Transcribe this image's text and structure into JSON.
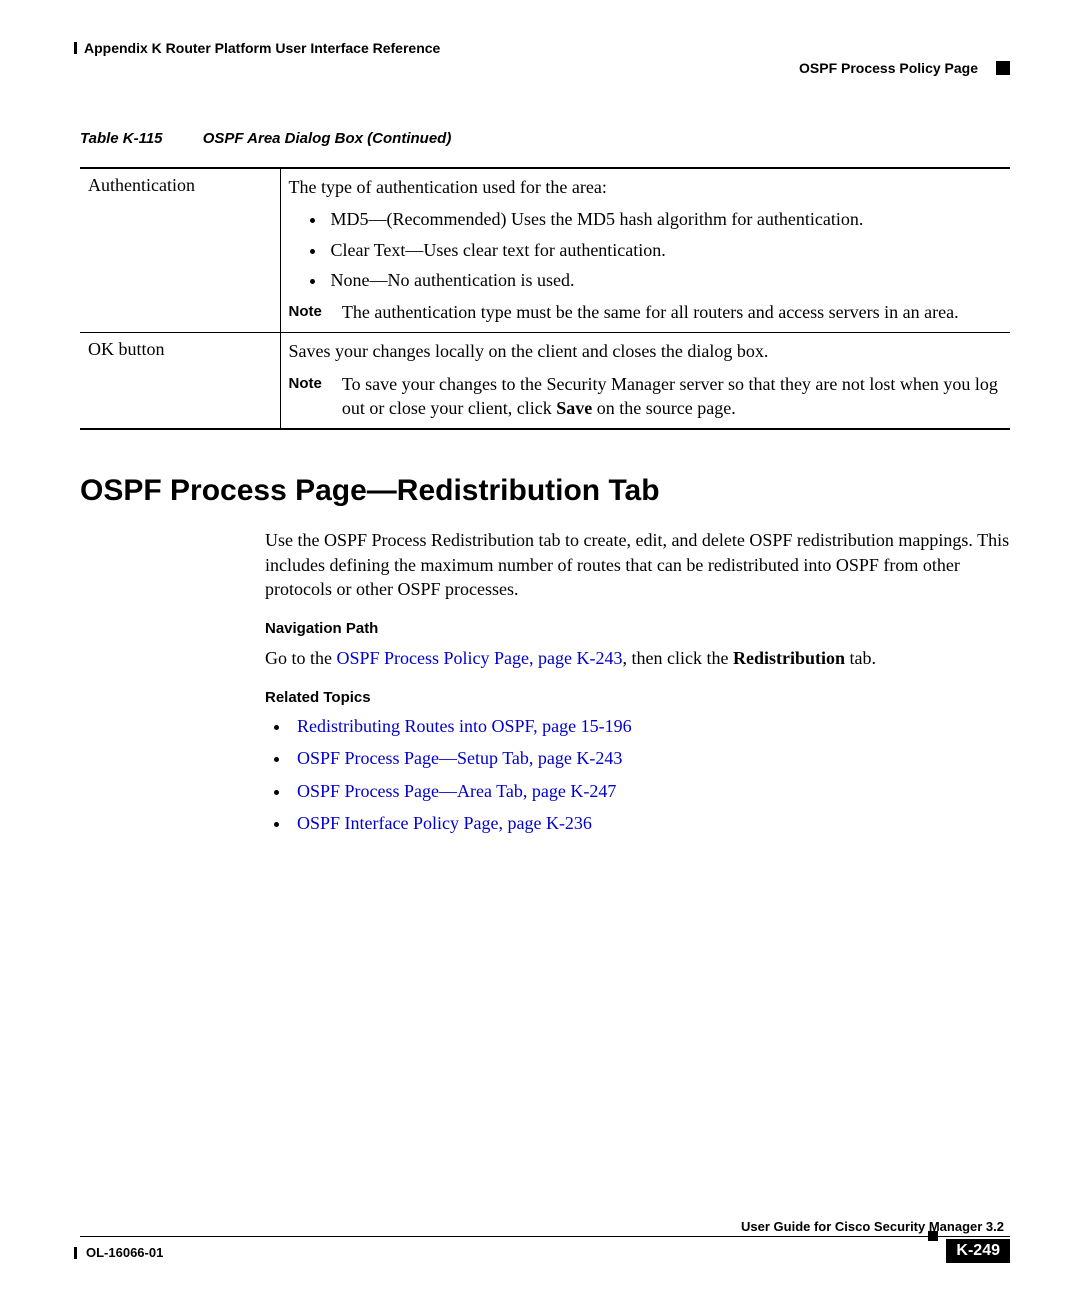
{
  "header": {
    "left": "Appendix K      Router Platform User Interface Reference",
    "right": "OSPF Process Policy Page"
  },
  "table_caption": {
    "num": "Table K-115",
    "title": "OSPF Area Dialog Box (Continued)"
  },
  "rows": {
    "r1": {
      "label": "Authentication",
      "intro": "The type of authentication used for the area:",
      "b1": "MD5—(Recommended) Uses the MD5 hash algorithm for authentication.",
      "b2": "Clear Text—Uses clear text for authentication.",
      "b3": "None—No authentication is used.",
      "note_label": "Note",
      "note_text": "The authentication type must be the same for all routers and access servers in an area."
    },
    "r2": {
      "label": "OK button",
      "intro": "Saves your changes locally on the client and closes the dialog box.",
      "note_label": "Note",
      "note_pre": "To save your changes to the Security Manager server so that they are not lost when you log out or close your client, click ",
      "note_bold": "Save",
      "note_post": " on the source page."
    }
  },
  "section_h": "OSPF Process Page—Redistribution Tab",
  "body": {
    "p1": "Use the OSPF Process Redistribution tab to create, edit, and delete OSPF redistribution mappings. This includes defining the maximum number of routes that can be redistributed into OSPF from other protocols or other OSPF processes.",
    "nav_h": "Navigation Path",
    "nav_pre": "Go to the ",
    "nav_link": "OSPF Process Policy Page, page K-243",
    "nav_mid": ", then click the ",
    "nav_bold": "Redistribution",
    "nav_post": " tab.",
    "rel_h": "Related Topics",
    "l1": "Redistributing Routes into OSPF, page 15-196",
    "l2": "OSPF Process Page—Setup Tab, page K-243",
    "l3": "OSPF Process Page—Area Tab, page K-247",
    "l4": "OSPF Interface Policy Page, page K-236"
  },
  "footer": {
    "guide": "User Guide for Cisco Security Manager 3.2",
    "ol": "OL-16066-01",
    "page": "K-249"
  }
}
